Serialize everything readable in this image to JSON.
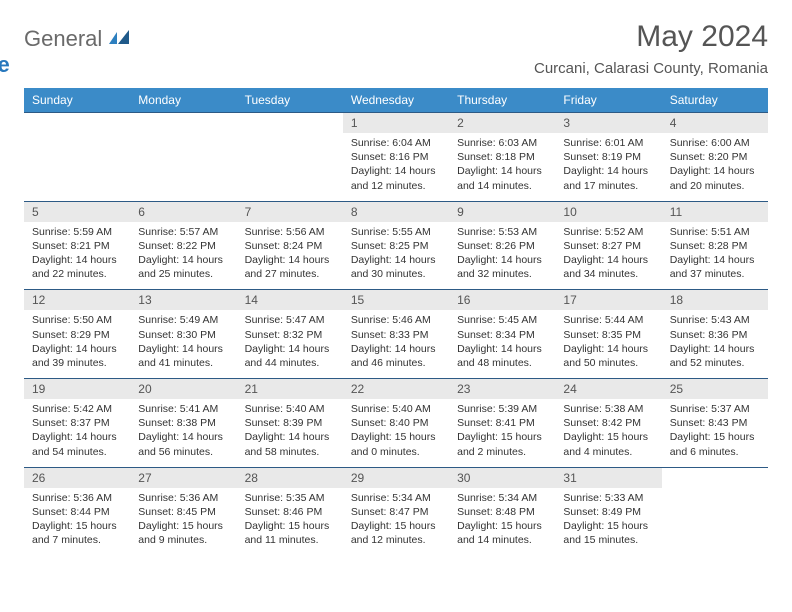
{
  "brand": {
    "part1": "General",
    "part2": "Blue"
  },
  "title": "May 2024",
  "location": "Curcani, Calarasi County, Romania",
  "colors": {
    "header_bg": "#3b8bc8",
    "header_text": "#ffffff",
    "daynum_bg": "#e9e9e9",
    "border": "#2d5a85",
    "logo_gray": "#6a6a6a",
    "logo_blue": "#2878bd",
    "text": "#333333"
  },
  "day_headers": [
    "Sunday",
    "Monday",
    "Tuesday",
    "Wednesday",
    "Thursday",
    "Friday",
    "Saturday"
  ],
  "weeks": [
    [
      null,
      null,
      null,
      {
        "n": "1",
        "sr": "Sunrise: 6:04 AM",
        "ss": "Sunset: 8:16 PM",
        "d1": "Daylight: 14 hours",
        "d2": "and 12 minutes."
      },
      {
        "n": "2",
        "sr": "Sunrise: 6:03 AM",
        "ss": "Sunset: 8:18 PM",
        "d1": "Daylight: 14 hours",
        "d2": "and 14 minutes."
      },
      {
        "n": "3",
        "sr": "Sunrise: 6:01 AM",
        "ss": "Sunset: 8:19 PM",
        "d1": "Daylight: 14 hours",
        "d2": "and 17 minutes."
      },
      {
        "n": "4",
        "sr": "Sunrise: 6:00 AM",
        "ss": "Sunset: 8:20 PM",
        "d1": "Daylight: 14 hours",
        "d2": "and 20 minutes."
      }
    ],
    [
      {
        "n": "5",
        "sr": "Sunrise: 5:59 AM",
        "ss": "Sunset: 8:21 PM",
        "d1": "Daylight: 14 hours",
        "d2": "and 22 minutes."
      },
      {
        "n": "6",
        "sr": "Sunrise: 5:57 AM",
        "ss": "Sunset: 8:22 PM",
        "d1": "Daylight: 14 hours",
        "d2": "and 25 minutes."
      },
      {
        "n": "7",
        "sr": "Sunrise: 5:56 AM",
        "ss": "Sunset: 8:24 PM",
        "d1": "Daylight: 14 hours",
        "d2": "and 27 minutes."
      },
      {
        "n": "8",
        "sr": "Sunrise: 5:55 AM",
        "ss": "Sunset: 8:25 PM",
        "d1": "Daylight: 14 hours",
        "d2": "and 30 minutes."
      },
      {
        "n": "9",
        "sr": "Sunrise: 5:53 AM",
        "ss": "Sunset: 8:26 PM",
        "d1": "Daylight: 14 hours",
        "d2": "and 32 minutes."
      },
      {
        "n": "10",
        "sr": "Sunrise: 5:52 AM",
        "ss": "Sunset: 8:27 PM",
        "d1": "Daylight: 14 hours",
        "d2": "and 34 minutes."
      },
      {
        "n": "11",
        "sr": "Sunrise: 5:51 AM",
        "ss": "Sunset: 8:28 PM",
        "d1": "Daylight: 14 hours",
        "d2": "and 37 minutes."
      }
    ],
    [
      {
        "n": "12",
        "sr": "Sunrise: 5:50 AM",
        "ss": "Sunset: 8:29 PM",
        "d1": "Daylight: 14 hours",
        "d2": "and 39 minutes."
      },
      {
        "n": "13",
        "sr": "Sunrise: 5:49 AM",
        "ss": "Sunset: 8:30 PM",
        "d1": "Daylight: 14 hours",
        "d2": "and 41 minutes."
      },
      {
        "n": "14",
        "sr": "Sunrise: 5:47 AM",
        "ss": "Sunset: 8:32 PM",
        "d1": "Daylight: 14 hours",
        "d2": "and 44 minutes."
      },
      {
        "n": "15",
        "sr": "Sunrise: 5:46 AM",
        "ss": "Sunset: 8:33 PM",
        "d1": "Daylight: 14 hours",
        "d2": "and 46 minutes."
      },
      {
        "n": "16",
        "sr": "Sunrise: 5:45 AM",
        "ss": "Sunset: 8:34 PM",
        "d1": "Daylight: 14 hours",
        "d2": "and 48 minutes."
      },
      {
        "n": "17",
        "sr": "Sunrise: 5:44 AM",
        "ss": "Sunset: 8:35 PM",
        "d1": "Daylight: 14 hours",
        "d2": "and 50 minutes."
      },
      {
        "n": "18",
        "sr": "Sunrise: 5:43 AM",
        "ss": "Sunset: 8:36 PM",
        "d1": "Daylight: 14 hours",
        "d2": "and 52 minutes."
      }
    ],
    [
      {
        "n": "19",
        "sr": "Sunrise: 5:42 AM",
        "ss": "Sunset: 8:37 PM",
        "d1": "Daylight: 14 hours",
        "d2": "and 54 minutes."
      },
      {
        "n": "20",
        "sr": "Sunrise: 5:41 AM",
        "ss": "Sunset: 8:38 PM",
        "d1": "Daylight: 14 hours",
        "d2": "and 56 minutes."
      },
      {
        "n": "21",
        "sr": "Sunrise: 5:40 AM",
        "ss": "Sunset: 8:39 PM",
        "d1": "Daylight: 14 hours",
        "d2": "and 58 minutes."
      },
      {
        "n": "22",
        "sr": "Sunrise: 5:40 AM",
        "ss": "Sunset: 8:40 PM",
        "d1": "Daylight: 15 hours",
        "d2": "and 0 minutes."
      },
      {
        "n": "23",
        "sr": "Sunrise: 5:39 AM",
        "ss": "Sunset: 8:41 PM",
        "d1": "Daylight: 15 hours",
        "d2": "and 2 minutes."
      },
      {
        "n": "24",
        "sr": "Sunrise: 5:38 AM",
        "ss": "Sunset: 8:42 PM",
        "d1": "Daylight: 15 hours",
        "d2": "and 4 minutes."
      },
      {
        "n": "25",
        "sr": "Sunrise: 5:37 AM",
        "ss": "Sunset: 8:43 PM",
        "d1": "Daylight: 15 hours",
        "d2": "and 6 minutes."
      }
    ],
    [
      {
        "n": "26",
        "sr": "Sunrise: 5:36 AM",
        "ss": "Sunset: 8:44 PM",
        "d1": "Daylight: 15 hours",
        "d2": "and 7 minutes."
      },
      {
        "n": "27",
        "sr": "Sunrise: 5:36 AM",
        "ss": "Sunset: 8:45 PM",
        "d1": "Daylight: 15 hours",
        "d2": "and 9 minutes."
      },
      {
        "n": "28",
        "sr": "Sunrise: 5:35 AM",
        "ss": "Sunset: 8:46 PM",
        "d1": "Daylight: 15 hours",
        "d2": "and 11 minutes."
      },
      {
        "n": "29",
        "sr": "Sunrise: 5:34 AM",
        "ss": "Sunset: 8:47 PM",
        "d1": "Daylight: 15 hours",
        "d2": "and 12 minutes."
      },
      {
        "n": "30",
        "sr": "Sunrise: 5:34 AM",
        "ss": "Sunset: 8:48 PM",
        "d1": "Daylight: 15 hours",
        "d2": "and 14 minutes."
      },
      {
        "n": "31",
        "sr": "Sunrise: 5:33 AM",
        "ss": "Sunset: 8:49 PM",
        "d1": "Daylight: 15 hours",
        "d2": "and 15 minutes."
      },
      null
    ]
  ]
}
